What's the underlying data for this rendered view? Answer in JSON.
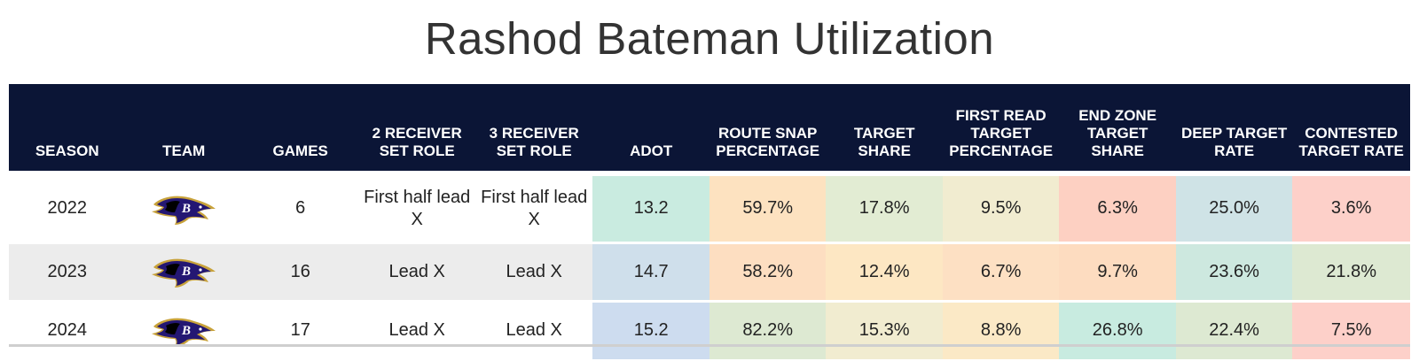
{
  "title": "Rashod Bateman Utilization",
  "columns": [
    "SEASON",
    "TEAM",
    "GAMES",
    "2 RECEIVER SET ROLE",
    "3 RECEIVER SET ROLE",
    "ADOT",
    "ROUTE SNAP PERCENTAGE",
    "TARGET SHARE",
    "FIRST READ TARGET PERCENTAGE",
    "END ZONE TARGET SHARE",
    "DEEP TARGET RATE",
    "CONTESTED TARGET RATE"
  ],
  "team_logo_icon": "ravens-logo-icon",
  "rows": [
    {
      "season": "2022",
      "games": "6",
      "two_wr_role": "First half lead X",
      "three_wr_role": "First half lead X",
      "adot": "13.2",
      "route_snap_pct": "59.7%",
      "target_share": "17.8%",
      "first_read_pct": "9.5%",
      "end_zone_share": "6.3%",
      "deep_rate": "25.0%",
      "contested_rate": "3.6%",
      "colors": [
        "#c9ebe0",
        "#fde2c0",
        "#e2ecd3",
        "#f1ecd0",
        "#fdd0c2",
        "#cfe3e6",
        "#fdd0c9"
      ]
    },
    {
      "season": "2023",
      "games": "16",
      "two_wr_role": "Lead X",
      "three_wr_role": "Lead X",
      "adot": "14.7",
      "route_snap_pct": "58.2%",
      "target_share": "12.4%",
      "first_read_pct": "6.7%",
      "end_zone_share": "9.7%",
      "deep_rate": "23.6%",
      "contested_rate": "21.8%",
      "colors": [
        "#cfdfeb",
        "#fddec1",
        "#fde7c3",
        "#fde0c3",
        "#fddcc0",
        "#cde8df",
        "#dde9d2"
      ]
    },
    {
      "season": "2024",
      "games": "17",
      "two_wr_role": "Lead X",
      "three_wr_role": "Lead X",
      "adot": "15.2",
      "route_snap_pct": "82.2%",
      "target_share": "15.3%",
      "first_read_pct": "8.8%",
      "end_zone_share": "26.8%",
      "deep_rate": "22.4%",
      "contested_rate": "7.5%",
      "colors": [
        "#cddcef",
        "#dde9d2",
        "#f1ecd0",
        "#fbe9c6",
        "#c8ebe0",
        "#dde9d2",
        "#fdd0c9"
      ]
    }
  ]
}
